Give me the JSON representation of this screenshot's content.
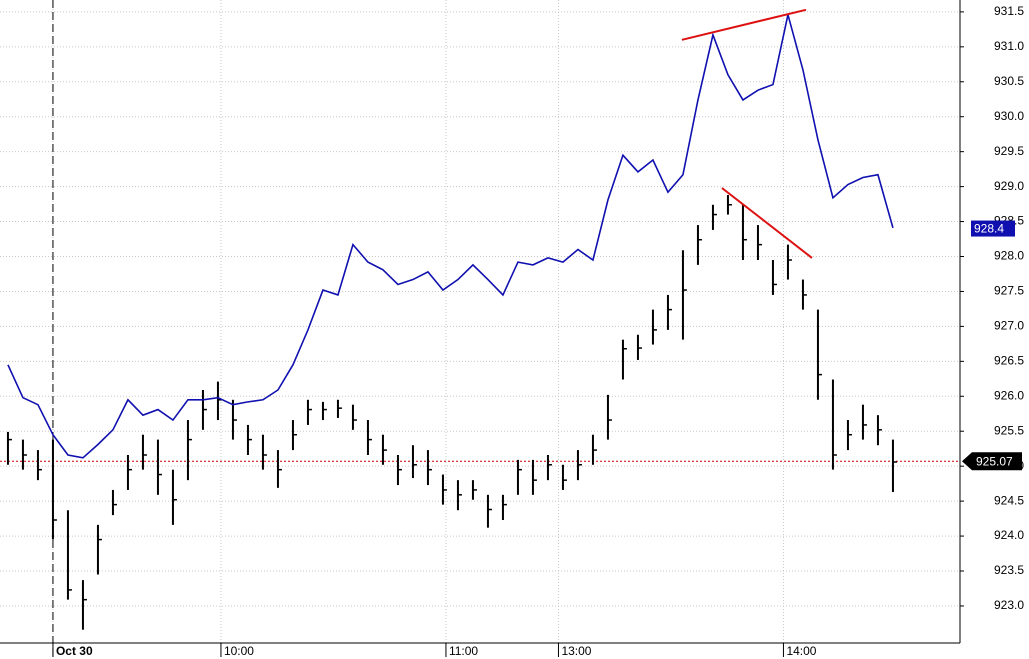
{
  "chart_data": {
    "type": "line",
    "xlim": [
      -0.53,
      63.47
    ],
    "xticks": [
      {
        "value": 3,
        "label": "Oct 30"
      },
      {
        "value": 14.2,
        "label": "10:00"
      },
      {
        "value": 29.2,
        "label": "11:00"
      },
      {
        "value": 36.7,
        "label": "13:00"
      },
      {
        "value": 51.7,
        "label": "14:00"
      }
    ],
    "ylim": [
      922.47,
      931.67
    ],
    "yticks": [
      {
        "value": 923,
        "label": "923.0"
      },
      923.5,
      {
        "value": 924,
        "label": "924.0"
      },
      924.5,
      {
        "value": 925,
        "label": "925.0"
      },
      925.5,
      {
        "value": 926,
        "label": "926.0"
      },
      926.5,
      {
        "value": 927,
        "label": "927.0"
      },
      927.5,
      {
        "value": 928,
        "label": "928.0"
      },
      928.5,
      {
        "value": 929,
        "label": "929.0"
      },
      929.5,
      {
        "value": 930,
        "label": "930.0"
      },
      930.5,
      {
        "value": 931,
        "label": "931.0"
      },
      931.5
    ],
    "grid": true,
    "session_break": 3,
    "line": {
      "color": "#1010b0",
      "values": [
        926.45,
        925.98,
        925.88,
        925.45,
        925.16,
        925.12,
        925.31,
        925.52,
        925.95,
        925.73,
        925.81,
        925.66,
        925.95,
        925.95,
        925.98,
        925.88,
        925.92,
        925.95,
        926.09,
        926.45,
        926.95,
        927.52,
        927.45,
        928.17,
        927.92,
        927.81,
        927.6,
        927.67,
        927.78,
        927.52,
        927.67,
        927.88,
        927.67,
        927.45,
        927.92,
        927.88,
        927.98,
        927.92,
        928.1,
        927.95,
        928.81,
        929.45,
        929.21,
        929.38,
        928.92,
        929.17,
        930.24,
        931.17,
        930.6,
        930.24,
        930.38,
        930.46,
        931.46,
        930.67,
        929.67,
        928.84,
        929.03,
        929.13,
        929.17,
        928.41
      ]
    },
    "bars": {
      "color": "#000000",
      "high": [
        925.49,
        925.38,
        925.23,
        925.38,
        924.37,
        923.37,
        924.16,
        924.66,
        925.16,
        925.45,
        925.38,
        924.95,
        925.66,
        926.09,
        926.21,
        925.95,
        925.59,
        925.45,
        925.23,
        925.66,
        925.95,
        925.92,
        925.95,
        925.88,
        925.66,
        925.45,
        925.16,
        925.3,
        925.23,
        924.88,
        924.8,
        924.8,
        924.59,
        924.59,
        925.09,
        925.09,
        925.16,
        925.02,
        925.23,
        925.45,
        926.02,
        926.81,
        926.88,
        927.24,
        927.45,
        928.09,
        928.45,
        928.74,
        928.88,
        928.74,
        928.45,
        927.95,
        928.17,
        927.67,
        927.24,
        926.24,
        925.66,
        925.88,
        925.73,
        925.38
      ],
      "low": [
        925.02,
        924.95,
        924.8,
        923.95,
        923.09,
        922.66,
        923.45,
        924.3,
        924.66,
        924.95,
        924.59,
        924.16,
        924.8,
        925.52,
        925.66,
        925.38,
        925.16,
        924.95,
        924.69,
        925.23,
        925.59,
        925.66,
        925.69,
        925.52,
        925.16,
        925.02,
        924.73,
        924.83,
        924.73,
        924.45,
        924.37,
        924.52,
        924.12,
        924.23,
        924.59,
        924.59,
        924.8,
        924.66,
        924.8,
        925.02,
        925.38,
        926.24,
        926.52,
        926.74,
        926.95,
        926.81,
        927.88,
        928.38,
        928.6,
        927.95,
        927.95,
        927.45,
        927.67,
        927.24,
        925.95,
        924.95,
        925.23,
        925.38,
        925.3,
        924.63
      ],
      "close": [
        925.38,
        925.16,
        924.95,
        924.23,
        923.23,
        923.09,
        923.95,
        924.45,
        924.95,
        925.16,
        924.88,
        924.52,
        925.38,
        925.81,
        925.95,
        925.66,
        925.38,
        925.16,
        924.95,
        925.45,
        925.81,
        925.81,
        925.83,
        925.66,
        925.38,
        925.23,
        924.95,
        925.02,
        924.95,
        924.66,
        924.59,
        924.66,
        924.38,
        924.45,
        924.95,
        924.8,
        925.02,
        924.8,
        925.02,
        925.23,
        925.66,
        926.68,
        926.69,
        926.95,
        927.24,
        927.52,
        928.24,
        928.6,
        928.74,
        928.24,
        928.17,
        927.6,
        927.95,
        927.45,
        926.31,
        925.16,
        925.45,
        925.59,
        925.52,
        925.06
      ]
    },
    "trendlines": {
      "color": "#dd1111",
      "lines": [
        {
          "x": [
            44.93,
            53.2
          ],
          "y": [
            931.1,
            931.53
          ]
        },
        {
          "x": [
            47.6,
            53.6
          ],
          "y": [
            928.98,
            927.98
          ]
        }
      ]
    },
    "line_last": 928.4,
    "price_line": {
      "value": 925.07,
      "color": "#cc0000"
    }
  }
}
